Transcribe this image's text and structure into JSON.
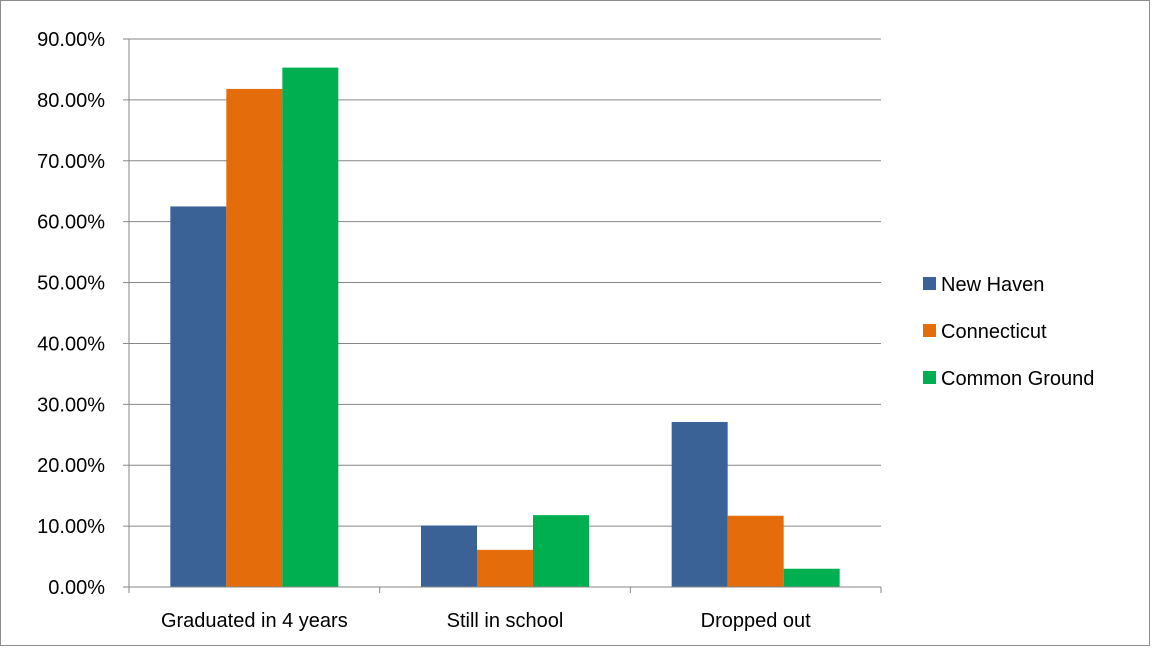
{
  "chart_data": {
    "type": "bar",
    "title": "",
    "xlabel": "",
    "ylabel": "",
    "categories": [
      "Graduated in 4 years",
      "Still in school",
      "Dropped out"
    ],
    "ylim": [
      0,
      0.9
    ],
    "yticks": [
      0,
      0.1,
      0.2,
      0.3,
      0.4,
      0.5,
      0.6,
      0.7,
      0.8,
      0.9
    ],
    "ytick_labels": [
      "0.00%",
      "10.00%",
      "20.00%",
      "30.00%",
      "40.00%",
      "50.00%",
      "60.00%",
      "70.00%",
      "80.00%",
      "90.00%"
    ],
    "grid": true,
    "legend_position": "right",
    "series": [
      {
        "name": "New Haven",
        "color": "#3a6296",
        "values": [
          0.625,
          0.101,
          0.271
        ]
      },
      {
        "name": "Connecticut",
        "color": "#e46c0a",
        "values": [
          0.818,
          0.061,
          0.117
        ]
      },
      {
        "name": "Common Ground",
        "color": "#00b050",
        "values": [
          0.853,
          0.118,
          0.03
        ]
      }
    ]
  }
}
